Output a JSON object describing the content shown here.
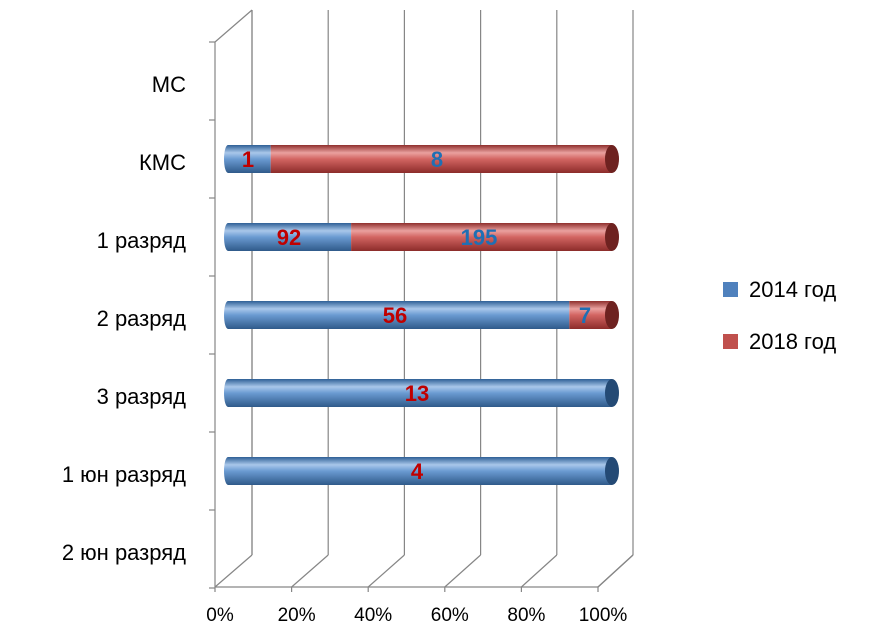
{
  "chart_data": {
    "type": "bar",
    "orientation": "horizontal",
    "stacked": "percent",
    "style": "3d-cylinder",
    "categories": [
      "МС",
      "КМС",
      "1 разряд",
      "2 разряд",
      "3 разряд",
      "1 юн разряд",
      "2 юн разряд"
    ],
    "series": [
      {
        "name": "2014 год",
        "values": [
          0,
          1,
          92,
          56,
          13,
          4,
          0
        ]
      },
      {
        "name": "2018 год",
        "values": [
          0,
          8,
          195,
          7,
          0,
          0,
          0
        ]
      }
    ],
    "xticks": [
      "0%",
      "20%",
      "40%",
      "60%",
      "80%",
      "100%"
    ],
    "xlim": [
      0,
      100
    ],
    "grid": true,
    "legend_position": "right",
    "data_labels": [
      {
        "category": "КМС",
        "series": "2014 год",
        "text": "1"
      },
      {
        "category": "КМС",
        "series": "2018 год",
        "text": "8"
      },
      {
        "category": "1 разряд",
        "series": "2014 год",
        "text": "92"
      },
      {
        "category": "1 разряд",
        "series": "2018 год",
        "text": "195"
      },
      {
        "category": "2 разряд",
        "series": "2014 год",
        "text": "56"
      },
      {
        "category": "2 разряд",
        "series": "2018 год",
        "text": "7"
      },
      {
        "category": "3 разряд",
        "series": "2014 год",
        "text": "13"
      },
      {
        "category": "1 юн разряд",
        "series": "2014 год",
        "text": "4"
      }
    ],
    "colors": {
      "2014 год": "#4f81bd",
      "2018 год": "#c0504d",
      "label_on_2014": "#c00000",
      "label_on_2018": "#1f6fb4",
      "grid": "#868686"
    }
  }
}
